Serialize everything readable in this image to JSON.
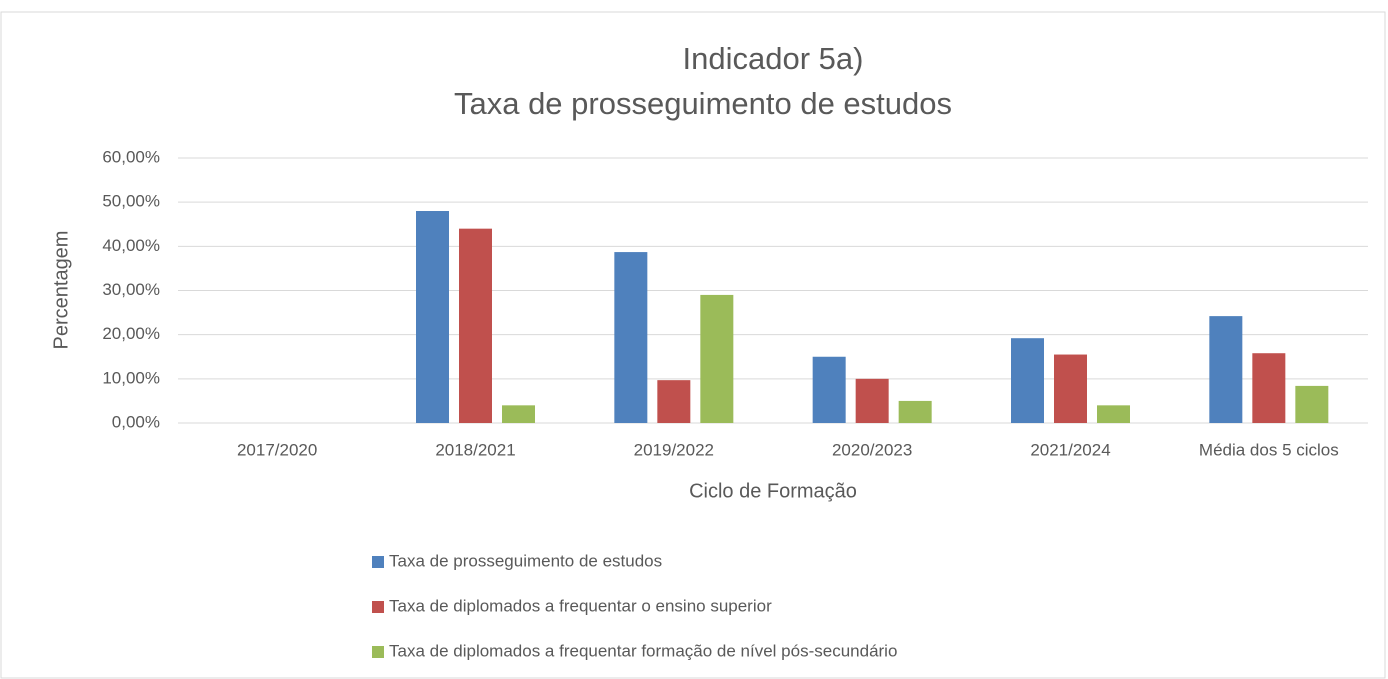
{
  "chart_data": {
    "type": "bar",
    "title": [
      "Indicador 5a)",
      "Taxa de prosseguimento de estudos"
    ],
    "x_label": "Ciclo de Formação",
    "y_label": "Percentagem",
    "categories": [
      "2017/2020",
      "2018/2021",
      "2019/2022",
      "2020/2023",
      "2021/2024",
      "Média dos 5 ciclos"
    ],
    "series": [
      {
        "name": "Taxa de prosseguimento de estudos",
        "color": "#4f81bd",
        "values": [
          0,
          48,
          38.7,
          15,
          19.2,
          24.2
        ]
      },
      {
        "name": "Taxa de diplomados a frequentar o ensino superior",
        "color": "#c0504d",
        "values": [
          0,
          44,
          9.7,
          10,
          15.5,
          15.8
        ]
      },
      {
        "name": "Taxa de diplomados a frequentar formação de nível pós-secundário",
        "color": "#9bbb59",
        "values": [
          0,
          4,
          29,
          5,
          4,
          8.4
        ]
      }
    ],
    "ylim": [
      0,
      60
    ],
    "yticks": [
      {
        "value": 0,
        "label": "0,00%"
      },
      {
        "value": 10,
        "label": "10,00%"
      },
      {
        "value": 20,
        "label": "20,00%"
      },
      {
        "value": 30,
        "label": "30,00%"
      },
      {
        "value": 40,
        "label": "40,00%"
      },
      {
        "value": 50,
        "label": "50,00%"
      },
      {
        "value": 60,
        "label": "60,00%"
      }
    ],
    "grid": true,
    "legend": "bottom"
  }
}
